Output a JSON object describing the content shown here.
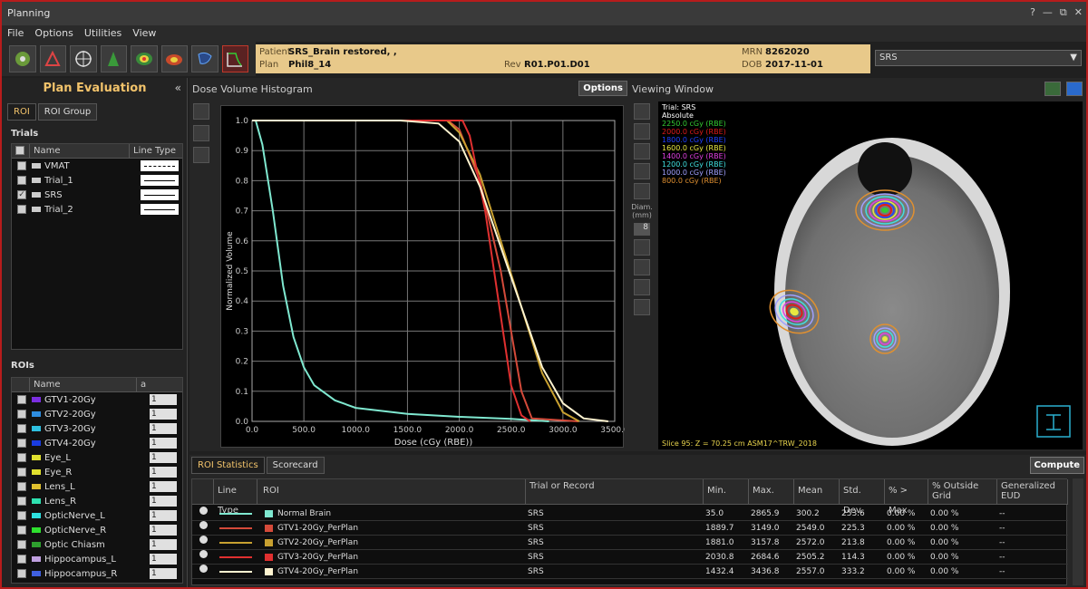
{
  "window": {
    "title": "Planning",
    "controls": [
      "?",
      "—",
      "⧉",
      "✕"
    ]
  },
  "menu": [
    "File",
    "Options",
    "Utilities",
    "View"
  ],
  "patient": {
    "patient_label": "Patient",
    "patient_value": "SRS_Brain restored, ,",
    "plan_label": "Plan",
    "plan_value": "Phil8_14",
    "rev_label": "Rev",
    "rev_value": "R01.P01.D01",
    "mrn_label": "MRN",
    "mrn_value": "8262020",
    "dob_label": "DOB",
    "dob_value": "2017-11-01"
  },
  "trial_select": {
    "value": "SRS",
    "arrow": "▼"
  },
  "left_panel": {
    "title": "Plan Evaluation",
    "collapse": "«",
    "tabs": [
      "ROI",
      "ROI Group"
    ],
    "trials_label": "Trials",
    "trials_headers": [
      "Name",
      "Line Type"
    ],
    "trials": [
      {
        "name": "VMAT",
        "checked": false,
        "style": "dashed"
      },
      {
        "name": "Trial_1",
        "checked": false,
        "style": "solid"
      },
      {
        "name": "SRS",
        "checked": true,
        "style": "solid"
      },
      {
        "name": "Trial_2",
        "checked": false,
        "style": "solid"
      }
    ],
    "rois_label": "ROIs",
    "rois_headers": [
      "Name",
      "a"
    ],
    "rois": [
      {
        "name": "GTV1-20Gy",
        "color": "#7b2ee0",
        "val": "1"
      },
      {
        "name": "GTV2-20Gy",
        "color": "#2e8de0",
        "val": "1"
      },
      {
        "name": "GTV3-20Gy",
        "color": "#2ec0e0",
        "val": "1"
      },
      {
        "name": "GTV4-20Gy",
        "color": "#1a3ce0",
        "val": "1"
      },
      {
        "name": "Eye_L",
        "color": "#e0e02e",
        "val": "1"
      },
      {
        "name": "Eye_R",
        "color": "#e0e02e",
        "val": "1"
      },
      {
        "name": "Lens_L",
        "color": "#e0c02e",
        "val": "1"
      },
      {
        "name": "Lens_R",
        "color": "#2ee0b0",
        "val": "1"
      },
      {
        "name": "OpticNerve_L",
        "color": "#2ee0e0",
        "val": "1"
      },
      {
        "name": "OpticNerve_R",
        "color": "#2ee02e",
        "val": "1"
      },
      {
        "name": "Optic Chiasm",
        "color": "#2ea02e",
        "val": "1"
      },
      {
        "name": "Hippocampus_L",
        "color": "#c0a0e0",
        "val": "1"
      },
      {
        "name": "Hippocampus_R",
        "color": "#4060e0",
        "val": "1"
      }
    ]
  },
  "dvh": {
    "title": "Dose Volume Histogram",
    "options_label": "Options"
  },
  "chart_data": {
    "type": "line",
    "xlabel": "Dose (cGy (RBE))",
    "ylabel": "Normalized Volume",
    "xlim": [
      0,
      3500
    ],
    "ylim": [
      0,
      1
    ],
    "xticks": [
      "0.0",
      "500.0",
      "1000.0",
      "1500.0",
      "2000.0",
      "2500.0",
      "3000.0",
      "3500.0"
    ],
    "yticks": [
      "0.0",
      "0.1",
      "0.2",
      "0.3",
      "0.4",
      "0.5",
      "0.6",
      "0.7",
      "0.8",
      "0.9",
      "1.0"
    ],
    "series": [
      {
        "color": "#7fe8d0",
        "points": [
          [
            35,
            1
          ],
          [
            100,
            0.92
          ],
          [
            200,
            0.7
          ],
          [
            300,
            0.45
          ],
          [
            400,
            0.28
          ],
          [
            500,
            0.18
          ],
          [
            600,
            0.12
          ],
          [
            800,
            0.07
          ],
          [
            1000,
            0.045
          ],
          [
            1500,
            0.025
          ],
          [
            2000,
            0.015
          ],
          [
            2500,
            0.008
          ],
          [
            2866,
            0
          ]
        ]
      },
      {
        "color": "#d44a3a",
        "points": [
          [
            0,
            1
          ],
          [
            1890,
            1
          ],
          [
            2000,
            0.97
          ],
          [
            2200,
            0.8
          ],
          [
            2400,
            0.5
          ],
          [
            2500,
            0.3
          ],
          [
            2600,
            0.1
          ],
          [
            2700,
            0.01
          ],
          [
            3149,
            0
          ]
        ]
      },
      {
        "color": "#c8a030",
        "points": [
          [
            0,
            1
          ],
          [
            1881,
            1
          ],
          [
            2000,
            0.96
          ],
          [
            2200,
            0.82
          ],
          [
            2400,
            0.6
          ],
          [
            2600,
            0.38
          ],
          [
            2800,
            0.16
          ],
          [
            3000,
            0.03
          ],
          [
            3158,
            0
          ]
        ]
      },
      {
        "color": "#e03030",
        "points": [
          [
            0,
            1
          ],
          [
            2031,
            1
          ],
          [
            2100,
            0.95
          ],
          [
            2250,
            0.7
          ],
          [
            2400,
            0.35
          ],
          [
            2500,
            0.12
          ],
          [
            2600,
            0.02
          ],
          [
            2685,
            0
          ]
        ]
      },
      {
        "color": "#fff4d0",
        "points": [
          [
            0,
            1
          ],
          [
            1432,
            1
          ],
          [
            1800,
            0.99
          ],
          [
            2000,
            0.93
          ],
          [
            2200,
            0.78
          ],
          [
            2400,
            0.58
          ],
          [
            2600,
            0.38
          ],
          [
            2800,
            0.18
          ],
          [
            3000,
            0.06
          ],
          [
            3200,
            0.01
          ],
          [
            3437,
            0
          ]
        ]
      }
    ]
  },
  "viewing": {
    "title": "Viewing Window",
    "diam_label": "Diam.\n(mm)",
    "diam_value": "8",
    "legend_trial": "Trial: SRS",
    "legend_mode": "Absolute",
    "isodoses": [
      {
        "label": "2250.0 cGy (RBE)",
        "color": "#33cc33"
      },
      {
        "label": "2000.0 cGy (RBE)",
        "color": "#e01a1a"
      },
      {
        "label": "1800.0 cGy (RBE)",
        "color": "#2040ff"
      },
      {
        "label": "1600.0 cGy (RBE)",
        "color": "#e8e840"
      },
      {
        "label": "1400.0 cGy (RBE)",
        "color": "#e040e0"
      },
      {
        "label": "1200.0 cGy (RBE)",
        "color": "#40e0e0"
      },
      {
        "label": "1000.0 cGy (RBE)",
        "color": "#a0a0ff"
      },
      {
        "label": "800.0 cGy (RBE)",
        "color": "#e09030"
      }
    ],
    "slice_text": "Slice 95: Z = 70.25 cm ASM17^TRW_2018"
  },
  "stats": {
    "tabs": [
      "ROI Statistics",
      "Scorecard"
    ],
    "compute_label": "Compute",
    "headers": [
      "Line Type",
      "ROI",
      "Trial or Record",
      "Min.",
      "Max.",
      "Mean",
      "Std. Dev.",
      "% > Max",
      "% Outside Grid",
      "Generalized EUD"
    ],
    "rows": [
      {
        "line_color": "#7fe8d0",
        "swatch": "#7fe8d0",
        "roi": "Normal Brain",
        "trial": "SRS",
        "min": "35.0",
        "max": "2865.9",
        "mean": "300.2",
        "std": "253.6",
        "pmax": "0.00 %",
        "pout": "0.00 %",
        "eud": "--"
      },
      {
        "line_color": "#d44a3a",
        "swatch": "#d44a3a",
        "roi": "GTV1-20Gy_PerPlan",
        "trial": "SRS",
        "min": "1889.7",
        "max": "3149.0",
        "mean": "2549.0",
        "std": "225.3",
        "pmax": "0.00 %",
        "pout": "0.00 %",
        "eud": "--"
      },
      {
        "line_color": "#c8a030",
        "swatch": "#c8a030",
        "roi": "GTV2-20Gy_PerPlan",
        "trial": "SRS",
        "min": "1881.0",
        "max": "3157.8",
        "mean": "2572.0",
        "std": "213.8",
        "pmax": "0.00 %",
        "pout": "0.00 %",
        "eud": "--"
      },
      {
        "line_color": "#e03030",
        "swatch": "#e03030",
        "roi": "GTV3-20Gy_PerPlan",
        "trial": "SRS",
        "min": "2030.8",
        "max": "2684.6",
        "mean": "2505.2",
        "std": "114.3",
        "pmax": "0.00 %",
        "pout": "0.00 %",
        "eud": "--"
      },
      {
        "line_color": "#fff4d0",
        "swatch": "#fff4d0",
        "roi": "GTV4-20Gy_PerPlan",
        "trial": "SRS",
        "min": "1432.4",
        "max": "3436.8",
        "mean": "2557.0",
        "std": "333.2",
        "pmax": "0.00 %",
        "pout": "0.00 %",
        "eud": "--"
      }
    ]
  }
}
